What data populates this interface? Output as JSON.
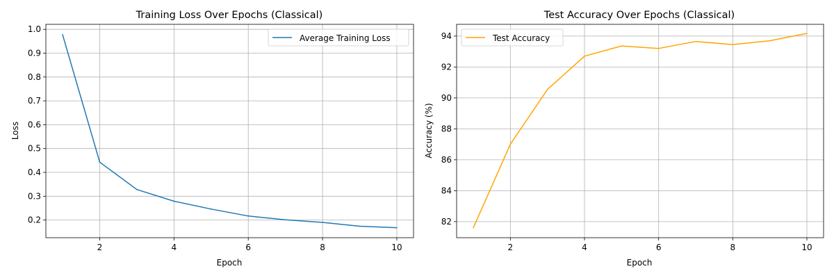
{
  "chart_data": [
    {
      "type": "line",
      "title": "Training Loss Over Epochs (Classical)",
      "xlabel": "Epoch",
      "ylabel": "Loss",
      "x": [
        1,
        2,
        3,
        4,
        5,
        6,
        7,
        8,
        9,
        10
      ],
      "xlim": [
        0.55,
        10.45
      ],
      "ylim": [
        0.126,
        1.021
      ],
      "xticks": [
        2,
        4,
        6,
        8,
        10
      ],
      "yticks": [
        0.2,
        0.3,
        0.4,
        0.5,
        0.6,
        0.7,
        0.8,
        0.9,
        1.0
      ],
      "ytick_labels": [
        "0.2",
        "0.3",
        "0.4",
        "0.5",
        "0.6",
        "0.7",
        "0.8",
        "0.9",
        "1.0"
      ],
      "grid": true,
      "legend_position": "upper right",
      "series": [
        {
          "name": "Average Training Loss",
          "color": "#1f77b4",
          "values": [
            0.978,
            0.443,
            0.328,
            0.279,
            0.246,
            0.217,
            0.201,
            0.19,
            0.174,
            0.168
          ]
        }
      ]
    },
    {
      "type": "line",
      "title": "Test Accuracy Over Epochs (Classical)",
      "xlabel": "Epoch",
      "ylabel": "Accuracy (%)",
      "x": [
        1,
        2,
        3,
        4,
        5,
        6,
        7,
        8,
        9,
        10
      ],
      "xlim": [
        0.55,
        10.45
      ],
      "ylim": [
        80.96,
        94.76
      ],
      "xticks": [
        2,
        4,
        6,
        8,
        10
      ],
      "yticks": [
        82,
        84,
        86,
        88,
        90,
        92,
        94
      ],
      "ytick_labels": [
        "82",
        "84",
        "86",
        "88",
        "90",
        "92",
        "94"
      ],
      "grid": true,
      "legend_position": "upper left",
      "series": [
        {
          "name": "Test Accuracy",
          "color": "#ffa500",
          "values": [
            81.6,
            87.0,
            90.55,
            92.7,
            93.36,
            93.2,
            93.65,
            93.45,
            93.7,
            94.17
          ]
        }
      ]
    }
  ]
}
